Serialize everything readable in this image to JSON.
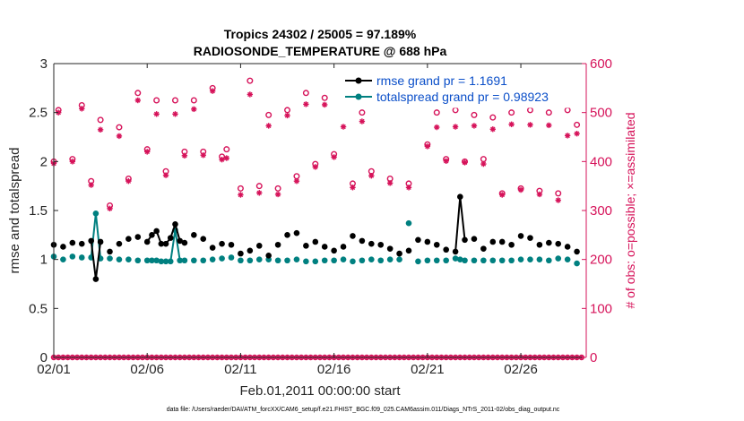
{
  "chart_data": {
    "type": "line",
    "title": "Tropics 24302 / 25005 = 97.189%",
    "subtitle": "RADIOSONDE_TEMPERATURE @ 688 hPa",
    "xlabel": "Feb.01,2011 00:00:00 start",
    "ylabel": "rmse and totalspread",
    "ylabel_right": "# of obs: o=possible; ×=assimilated",
    "footer": "data file: /Users/raeder/DAI/ATM_forcXX/CAM6_setup/f.e21.FHIST_BGC.f09_025.CAM6assim.011/Diags_NTrS_2011-02/obs_diag_output.nc",
    "xlim": [
      1,
      29.5
    ],
    "ylim": [
      0,
      3
    ],
    "ylim_right": [
      0,
      600
    ],
    "x_ticks": [
      1,
      6,
      11,
      16,
      21,
      26
    ],
    "x_tick_labels": [
      "02/01",
      "02/06",
      "02/11",
      "02/16",
      "02/21",
      "02/26"
    ],
    "y_ticks": [
      0,
      0.5,
      1,
      1.5,
      2,
      2.5,
      3
    ],
    "y_tick_labels": [
      "0",
      "0.5",
      "1",
      "1.5",
      "2",
      "2.5",
      "3"
    ],
    "y_right_ticks": [
      0,
      100,
      200,
      300,
      400,
      500,
      600
    ],
    "y_right_tick_labels": [
      "0",
      "100",
      "200",
      "300",
      "400",
      "500",
      "600"
    ],
    "x": [
      1.0,
      1.25,
      1.5,
      1.75,
      2.0,
      2.25,
      2.5,
      2.75,
      3.0,
      3.25,
      3.5,
      3.75,
      4.0,
      4.25,
      4.5,
      4.75,
      5.0,
      5.25,
      5.5,
      5.75,
      6.0,
      6.25,
      6.5,
      6.75,
      7.0,
      7.25,
      7.5,
      7.75,
      8.0,
      8.25,
      8.5,
      8.75,
      9.0,
      9.25,
      9.5,
      9.75,
      10.0,
      10.25,
      10.5,
      10.75,
      11.0,
      11.25,
      11.5,
      11.75,
      12.0,
      12.25,
      12.5,
      12.75,
      13.0,
      13.25,
      13.5,
      13.75,
      14.0,
      14.25,
      14.5,
      14.75,
      15.0,
      15.25,
      15.5,
      15.75,
      16.0,
      16.25,
      16.5,
      16.75,
      17.0,
      17.25,
      17.5,
      17.75,
      18.0,
      18.25,
      18.5,
      18.75,
      19.0,
      19.25,
      19.5,
      19.75,
      20.0,
      20.25,
      20.5,
      20.75,
      21.0,
      21.25,
      21.5,
      21.75,
      22.0,
      22.25,
      22.5,
      22.75,
      23.0,
      23.25,
      23.5,
      23.75,
      24.0,
      24.25,
      24.5,
      24.75,
      25.0,
      25.25,
      25.5,
      25.75,
      26.0,
      26.25,
      26.5,
      26.75,
      27.0,
      27.25,
      27.5,
      27.75,
      28.0,
      28.25,
      28.5,
      28.75,
      29.0,
      29.25
    ],
    "series": [
      {
        "name": "rmse",
        "legend": "rmse grand pr = 1.1691",
        "color": "#000000",
        "marker": "filled-circle",
        "points": [
          [
            1.0,
            1.15
          ],
          [
            1.5,
            1.13
          ],
          [
            2.0,
            1.17
          ],
          [
            2.5,
            1.16
          ],
          [
            3.0,
            1.19
          ],
          [
            3.25,
            0.8
          ],
          [
            3.5,
            1.18
          ],
          [
            4.0,
            1.08
          ],
          [
            4.5,
            1.16
          ],
          [
            5.0,
            1.21
          ],
          [
            5.5,
            1.23
          ],
          [
            6.0,
            1.18
          ],
          [
            6.25,
            1.25
          ],
          [
            6.5,
            1.29
          ],
          [
            6.75,
            1.16
          ],
          [
            7.0,
            1.16
          ],
          [
            7.25,
            1.22
          ],
          [
            7.5,
            1.36
          ],
          [
            7.75,
            1.19
          ],
          [
            8.0,
            1.17
          ],
          [
            8.5,
            1.25
          ],
          [
            9.0,
            1.21
          ],
          [
            9.5,
            1.12
          ],
          [
            10.0,
            1.16
          ],
          [
            10.5,
            1.15
          ],
          [
            11.0,
            1.06
          ],
          [
            11.5,
            1.09
          ],
          [
            12.0,
            1.14
          ],
          [
            12.5,
            1.04
          ],
          [
            13.0,
            1.15
          ],
          [
            13.5,
            1.25
          ],
          [
            14.0,
            1.27
          ],
          [
            14.5,
            1.14
          ],
          [
            15.0,
            1.18
          ],
          [
            15.5,
            1.13
          ],
          [
            16.0,
            1.09
          ],
          [
            16.5,
            1.13
          ],
          [
            17.0,
            1.24
          ],
          [
            17.5,
            1.19
          ],
          [
            18.0,
            1.16
          ],
          [
            18.5,
            1.15
          ],
          [
            19.0,
            1.11
          ],
          [
            19.5,
            1.06
          ],
          [
            20.0,
            1.09
          ],
          [
            20.5,
            1.2
          ],
          [
            21.0,
            1.18
          ],
          [
            21.5,
            1.15
          ],
          [
            22.0,
            1.1
          ],
          [
            22.5,
            1.08
          ],
          [
            22.75,
            1.64
          ],
          [
            23.0,
            1.2
          ],
          [
            23.5,
            1.21
          ],
          [
            24.0,
            1.11
          ],
          [
            24.5,
            1.18
          ],
          [
            25.0,
            1.18
          ],
          [
            25.5,
            1.15
          ],
          [
            26.0,
            1.24
          ],
          [
            26.5,
            1.22
          ],
          [
            27.0,
            1.15
          ],
          [
            27.5,
            1.17
          ],
          [
            28.0,
            1.16
          ],
          [
            28.5,
            1.13
          ],
          [
            29.0,
            1.08
          ]
        ]
      },
      {
        "name": "totalspread",
        "legend": "totalspread grand pr = 0.98923",
        "color": "#008080",
        "marker": "filled-circle",
        "points": [
          [
            1.0,
            1.03
          ],
          [
            1.5,
            1.0
          ],
          [
            2.0,
            1.03
          ],
          [
            2.5,
            1.02
          ],
          [
            3.0,
            1.02
          ],
          [
            3.25,
            1.47
          ],
          [
            3.5,
            1.01
          ],
          [
            4.0,
            1.01
          ],
          [
            4.5,
            1.0
          ],
          [
            5.0,
            1.0
          ],
          [
            5.5,
            0.99
          ],
          [
            6.0,
            0.99
          ],
          [
            6.25,
            0.99
          ],
          [
            6.5,
            0.99
          ],
          [
            6.75,
            0.98
          ],
          [
            7.0,
            0.98
          ],
          [
            7.25,
            0.98
          ],
          [
            7.5,
            1.3
          ],
          [
            7.75,
            0.99
          ],
          [
            8.0,
            0.99
          ],
          [
            8.5,
            0.99
          ],
          [
            9.0,
            0.99
          ],
          [
            9.5,
            1.0
          ],
          [
            10.0,
            1.01
          ],
          [
            10.5,
            1.02
          ],
          [
            11.0,
            0.99
          ],
          [
            11.5,
            0.99
          ],
          [
            12.0,
            1.0
          ],
          [
            12.5,
            1.0
          ],
          [
            13.0,
            0.99
          ],
          [
            13.5,
            0.99
          ],
          [
            14.0,
            1.0
          ],
          [
            14.5,
            0.98
          ],
          [
            15.0,
            0.98
          ],
          [
            15.5,
            0.99
          ],
          [
            16.0,
            0.99
          ],
          [
            16.5,
            1.0
          ],
          [
            17.0,
            0.98
          ],
          [
            17.5,
            0.99
          ],
          [
            18.0,
            1.0
          ],
          [
            18.5,
            0.99
          ],
          [
            19.0,
            1.0
          ],
          [
            19.5,
            1.0
          ],
          [
            20.0,
            1.37
          ],
          [
            20.5,
            0.98
          ],
          [
            21.0,
            0.99
          ],
          [
            21.5,
            0.99
          ],
          [
            22.0,
            0.99
          ],
          [
            22.5,
            1.01
          ],
          [
            22.75,
            1.0
          ],
          [
            23.0,
            0.99
          ],
          [
            23.5,
            0.99
          ],
          [
            24.0,
            0.99
          ],
          [
            24.5,
            0.99
          ],
          [
            25.0,
            0.99
          ],
          [
            25.5,
            0.99
          ],
          [
            26.0,
            1.0
          ],
          [
            26.5,
            1.0
          ],
          [
            27.0,
            1.0
          ],
          [
            27.5,
            0.99
          ],
          [
            28.0,
            1.01
          ],
          [
            28.5,
            1.0
          ],
          [
            29.0,
            0.96
          ]
        ]
      }
    ],
    "obs_series": [
      {
        "name": "possible",
        "marker": "open-circle",
        "color": "#d6135a",
        "axis": "right",
        "points": [
          [
            1.0,
            400
          ],
          [
            1.25,
            505
          ],
          [
            2.0,
            405
          ],
          [
            2.5,
            515
          ],
          [
            3.0,
            360
          ],
          [
            3.5,
            485
          ],
          [
            4.0,
            310
          ],
          [
            4.5,
            470
          ],
          [
            5.0,
            365
          ],
          [
            5.5,
            540
          ],
          [
            6.0,
            425
          ],
          [
            6.5,
            525
          ],
          [
            7.0,
            380
          ],
          [
            7.5,
            525
          ],
          [
            8.0,
            420
          ],
          [
            8.5,
            525
          ],
          [
            9.0,
            420
          ],
          [
            9.5,
            550
          ],
          [
            10.0,
            410
          ],
          [
            10.25,
            425
          ],
          [
            11.0,
            345
          ],
          [
            11.5,
            565
          ],
          [
            12.0,
            350
          ],
          [
            12.5,
            495
          ],
          [
            13.0,
            345
          ],
          [
            13.5,
            505
          ],
          [
            14.0,
            370
          ],
          [
            14.5,
            540
          ],
          [
            15.0,
            395
          ],
          [
            15.5,
            530
          ],
          [
            16.0,
            415
          ],
          [
            16.5,
            535
          ],
          [
            17.0,
            355
          ],
          [
            17.5,
            500
          ],
          [
            18.0,
            380
          ],
          [
            18.5,
            535
          ],
          [
            19.0,
            365
          ],
          [
            19.5,
            545
          ],
          [
            20.0,
            355
          ],
          [
            20.5,
            535
          ],
          [
            21.0,
            435
          ],
          [
            21.5,
            500
          ],
          [
            22.0,
            405
          ],
          [
            22.5,
            505
          ],
          [
            23.0,
            400
          ],
          [
            23.5,
            495
          ],
          [
            24.0,
            405
          ],
          [
            24.5,
            490
          ],
          [
            25.0,
            335
          ],
          [
            25.5,
            500
          ],
          [
            26.0,
            345
          ],
          [
            26.5,
            505
          ],
          [
            27.0,
            340
          ],
          [
            27.5,
            500
          ],
          [
            28.0,
            335
          ],
          [
            28.5,
            505
          ],
          [
            29.0,
            475
          ]
        ]
      },
      {
        "name": "assimilated",
        "marker": "asterisk",
        "color": "#d6135a",
        "axis": "right",
        "points": [
          [
            1.0,
            396
          ],
          [
            1.25,
            500
          ],
          [
            2.0,
            400
          ],
          [
            2.5,
            508
          ],
          [
            3.0,
            352
          ],
          [
            3.5,
            465
          ],
          [
            4.0,
            304
          ],
          [
            4.5,
            452
          ],
          [
            5.0,
            360
          ],
          [
            5.5,
            525
          ],
          [
            6.0,
            420
          ],
          [
            6.5,
            497
          ],
          [
            7.0,
            372
          ],
          [
            7.5,
            497
          ],
          [
            8.0,
            412
          ],
          [
            8.5,
            507
          ],
          [
            9.0,
            413
          ],
          [
            9.5,
            544
          ],
          [
            10.0,
            404
          ],
          [
            10.25,
            407
          ],
          [
            11.0,
            332
          ],
          [
            11.5,
            537
          ],
          [
            12.0,
            336
          ],
          [
            12.5,
            473
          ],
          [
            13.0,
            333
          ],
          [
            13.5,
            494
          ],
          [
            14.0,
            360
          ],
          [
            14.5,
            517
          ],
          [
            15.0,
            389
          ],
          [
            15.5,
            516
          ],
          [
            16.0,
            409
          ],
          [
            16.5,
            471
          ],
          [
            17.0,
            347
          ],
          [
            17.5,
            482
          ],
          [
            18.0,
            371
          ],
          [
            18.5,
            521
          ],
          [
            19.0,
            356
          ],
          [
            19.5,
            542
          ],
          [
            20.0,
            347
          ],
          [
            20.5,
            524
          ],
          [
            21.0,
            431
          ],
          [
            21.5,
            470
          ],
          [
            22.0,
            401
          ],
          [
            22.5,
            471
          ],
          [
            23.0,
            398
          ],
          [
            23.5,
            473
          ],
          [
            24.0,
            395
          ],
          [
            24.5,
            466
          ],
          [
            25.0,
            332
          ],
          [
            25.5,
            476
          ],
          [
            26.0,
            342
          ],
          [
            26.5,
            475
          ],
          [
            27.0,
            333
          ],
          [
            27.5,
            474
          ],
          [
            28.0,
            321
          ],
          [
            28.5,
            453
          ],
          [
            29.0,
            457
          ]
        ]
      }
    ],
    "legend_position": "top-right"
  }
}
